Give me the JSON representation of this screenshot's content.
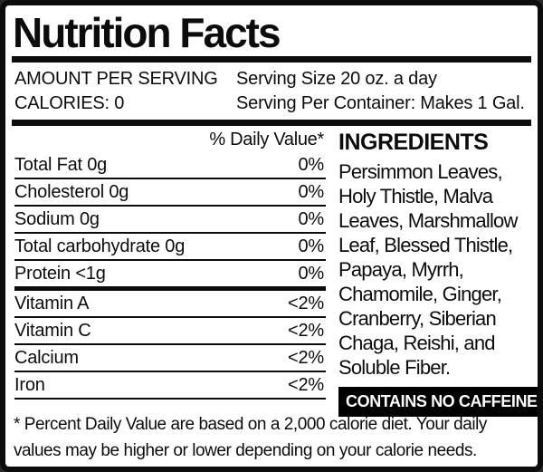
{
  "label": {
    "title": "Nutrition Facts",
    "header": {
      "amount_per_serving": "AMOUNT PER SERVING",
      "calories": "CALORIES: 0",
      "serving_size": "Serving Size 20 oz. a day",
      "serving_per_container": "Serving Per Container: Makes 1 Gal."
    },
    "daily_value_header": "% Daily Value*",
    "nutrients": [
      {
        "label": "Total Fat 0g",
        "value": "0%"
      },
      {
        "label": "Cholesterol 0g",
        "value": "0%"
      },
      {
        "label": "Sodium 0g",
        "value": "0%"
      },
      {
        "label": "Total carbohydrate 0g",
        "value": "0%"
      },
      {
        "label": "Protein <1g",
        "value": "0%"
      }
    ],
    "vitamins": [
      {
        "label": "Vitamin A",
        "value": "<2%"
      },
      {
        "label": "Vitamin C",
        "value": "<2%"
      },
      {
        "label": "Calcium",
        "value": "<2%"
      },
      {
        "label": "Iron",
        "value": "<2%"
      }
    ],
    "ingredients": {
      "heading": "INGREDIENTS",
      "text": "Persimmon Leaves, Holy Thistle, Malva Leaves, Marshmallow Leaf, Blessed Thistle, Papaya, Myrrh, Chamomile, Ginger, Cranberry, Siberian Chaga, Reishi, and Soluble Fiber.",
      "lines": [
        "Persimmon Leaves,",
        "Holy Thistle, Malva",
        "Leaves, Marshmallow",
        "Leaf, Blessed Thistle,",
        "Papaya, Myrrh,",
        "Chamomile, Ginger,",
        "Cranberry, Siberian",
        "Chaga, Reishi, and",
        "Soluble Fiber."
      ]
    },
    "caffeine_badge": "CONTAINS NO CAFFEINE",
    "footnote_lines": [
      "* Percent Daily Value are based on a 2,000 calorie diet. Your daily",
      "values may be higher or lower depending on your calorie needs."
    ],
    "colors": {
      "text": "#0c0c0c",
      "background": "#ffffff",
      "border": "#0c0c0c",
      "badge_bg": "#000000",
      "badge_text": "#ffffff"
    }
  }
}
